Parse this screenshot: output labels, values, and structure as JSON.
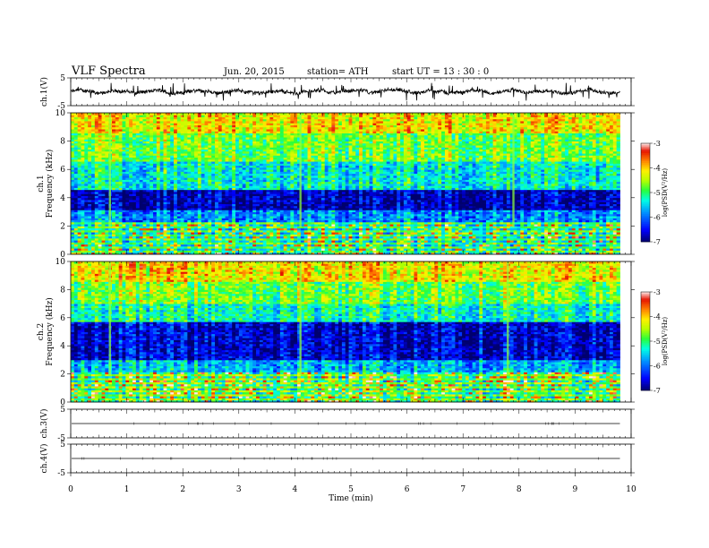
{
  "header": {
    "title": "VLF  Spectra",
    "date": "Jun. 20, 2015",
    "station": "station= ATH",
    "start": "start  UT  =   13 : 30 : 0"
  },
  "chart_data": [
    {
      "type": "line",
      "panel": "ch1-waveform",
      "ylabel": "ch.1(V)",
      "ylim": [
        -5,
        5
      ],
      "yticks": [
        {
          "v": 5,
          "label": "5"
        },
        {
          "v": -5,
          "label": "-5"
        }
      ],
      "xlim": [
        0,
        10
      ],
      "data_extent": [
        0,
        9.8
      ],
      "signal": "noisy waveform, amplitude about ±1 V with frequent spikes to ±2 V"
    },
    {
      "type": "heatmap",
      "panel": "ch1-spectrogram",
      "ylabel_lines": [
        "ch.1",
        "Frequency  (kHz)"
      ],
      "ylim": [
        0,
        10
      ],
      "yticks": [
        {
          "v": 0,
          "label": "0"
        },
        {
          "v": 2,
          "label": "2"
        },
        {
          "v": 4,
          "label": "4"
        },
        {
          "v": 6,
          "label": "6"
        },
        {
          "v": 8,
          "label": "8"
        },
        {
          "v": 10,
          "label": "10"
        }
      ],
      "xlim": [
        0,
        10
      ],
      "data_extent": [
        0,
        9.8
      ],
      "colorbar": {
        "label": "log(PSD(V²/Hz)",
        "range": [
          -7,
          -3
        ],
        "ticks": [
          {
            "v": -3,
            "label": "-3"
          },
          {
            "v": -4,
            "label": "-4"
          },
          {
            "v": -5,
            "label": "-5"
          },
          {
            "v": -6,
            "label": "-6"
          },
          {
            "v": -7,
            "label": "-7"
          }
        ]
      },
      "bands": [
        {
          "from_khz": 0,
          "to_khz": 2.3,
          "level": -4.8
        },
        {
          "from_khz": 2.3,
          "to_khz": 3.2,
          "level": -5.8
        },
        {
          "from_khz": 3.2,
          "to_khz": 4.6,
          "level": -6.7
        },
        {
          "from_khz": 4.6,
          "to_khz": 6.5,
          "level": -5.3
        },
        {
          "from_khz": 6.5,
          "to_khz": 8.5,
          "level": -4.7
        },
        {
          "from_khz": 8.5,
          "to_khz": 10,
          "level": -4.1
        }
      ],
      "impulse_times_min": [
        0.7,
        4.1,
        7.9
      ]
    },
    {
      "type": "heatmap",
      "panel": "ch2-spectrogram",
      "ylabel_lines": [
        "ch.2",
        "Frequency  (kHz)"
      ],
      "ylim": [
        0,
        10
      ],
      "yticks": [
        {
          "v": 0,
          "label": "0"
        },
        {
          "v": 2,
          "label": "2"
        },
        {
          "v": 4,
          "label": "4"
        },
        {
          "v": 6,
          "label": "6"
        },
        {
          "v": 8,
          "label": "8"
        },
        {
          "v": 10,
          "label": "10"
        }
      ],
      "xlim": [
        0,
        10
      ],
      "data_extent": [
        0,
        9.8
      ],
      "colorbar": {
        "label": "log(PSD(V²/Hz)",
        "range": [
          -7,
          -3
        ],
        "ticks": [
          {
            "v": -3,
            "label": "-3"
          },
          {
            "v": -4,
            "label": "-4"
          },
          {
            "v": -5,
            "label": "-5"
          },
          {
            "v": -6,
            "label": "-6"
          },
          {
            "v": -7,
            "label": "-7"
          }
        ]
      },
      "bands": [
        {
          "from_khz": 0,
          "to_khz": 2.2,
          "level": -4.6
        },
        {
          "from_khz": 2.2,
          "to_khz": 3.0,
          "level": -5.6
        },
        {
          "from_khz": 3.0,
          "to_khz": 5.7,
          "level": -6.6
        },
        {
          "from_khz": 5.7,
          "to_khz": 7.0,
          "level": -5.2
        },
        {
          "from_khz": 7.0,
          "to_khz": 8.6,
          "level": -4.7
        },
        {
          "from_khz": 8.6,
          "to_khz": 10,
          "level": -4.1
        }
      ],
      "impulse_times_min": [
        0.7,
        4.1,
        7.8
      ]
    },
    {
      "type": "line",
      "panel": "ch3-waveform",
      "ylabel": "ch.3(V)",
      "ylim": [
        -5,
        5
      ],
      "yticks": [
        {
          "v": 5,
          "label": "5"
        },
        {
          "v": -5,
          "label": "-5"
        }
      ],
      "xlim": [
        0,
        10
      ],
      "data_extent": [
        0,
        9.8
      ],
      "baseline_v": 0
    },
    {
      "type": "line",
      "panel": "ch4-waveform",
      "ylabel": "ch.4(V)",
      "ylim": [
        -5,
        5
      ],
      "yticks": [
        {
          "v": 5,
          "label": "5"
        },
        {
          "v": -5,
          "label": "-5"
        }
      ],
      "xlim": [
        0,
        10
      ],
      "data_extent": [
        0,
        9.8
      ],
      "baseline_v": 0,
      "xlabel": "Time  (min)",
      "xticks": [
        {
          "v": 0,
          "label": "0"
        },
        {
          "v": 1,
          "label": "1"
        },
        {
          "v": 2,
          "label": "2"
        },
        {
          "v": 3,
          "label": "3"
        },
        {
          "v": 4,
          "label": "4"
        },
        {
          "v": 5,
          "label": "5"
        },
        {
          "v": 6,
          "label": "6"
        },
        {
          "v": 7,
          "label": "7"
        },
        {
          "v": 8,
          "label": "8"
        },
        {
          "v": 9,
          "label": "9"
        },
        {
          "v": 10,
          "label": "10"
        }
      ]
    }
  ]
}
